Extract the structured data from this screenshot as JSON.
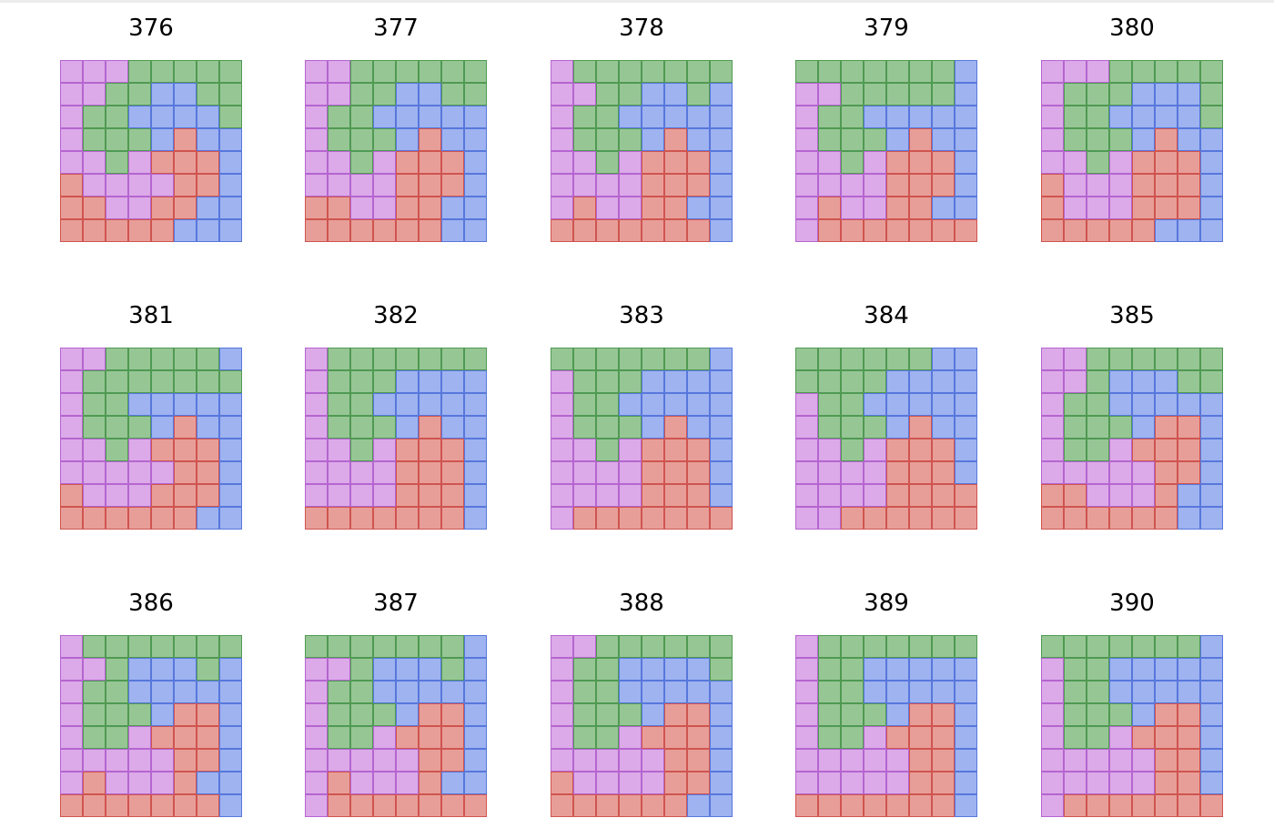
{
  "colors": {
    "P": {
      "fill": "#dcaae8",
      "stroke": "#b565d0"
    },
    "G": {
      "fill": "#97c695",
      "stroke": "#4f9a52"
    },
    "B": {
      "fill": "#9eb3f0",
      "stroke": "#5877dc"
    },
    "R": {
      "fill": "#e89e98",
      "stroke": "#cf5450"
    }
  },
  "panels": [
    {
      "title": "376",
      "grid": [
        "PPPGGGGG",
        "PPGGBBGG",
        "PGGBBBBG",
        "PGGGBRBB",
        "PPGPRRRB",
        "RPPPPRRB",
        "RRPPRRBB",
        "RRRRRBBB"
      ]
    },
    {
      "title": "377",
      "grid": [
        "PPGGGGGG",
        "PPGGBBGG",
        "PGGBBBBB",
        "PGGGBRBB",
        "PPGPRRRB",
        "PPPPRRRB",
        "RRPPRRBB",
        "RRRRRRBB"
      ]
    },
    {
      "title": "378",
      "grid": [
        "PGGGGGGG",
        "PPGGBBGB",
        "PGGBBBBB",
        "PGGGBRBB",
        "PPGPRRRB",
        "PPPPRRRB",
        "PRPPRRBB",
        "RRRRRRRB"
      ]
    },
    {
      "title": "379",
      "grid": [
        "GGGGGGGB",
        "PPGGGGGB",
        "PGGBBBBB",
        "PGGGBRBB",
        "PPGPRRRB",
        "PPPPRRRB",
        "PRPPRRBB",
        "PRRRRRRR"
      ]
    },
    {
      "title": "380",
      "grid": [
        "PPPGGGGG",
        "PGGGBBBG",
        "PGGBBBBG",
        "PGGGBRBB",
        "PPGPRRRB",
        "RPPPRRRB",
        "RPPPRRRB",
        "RRRRRBBB"
      ]
    },
    {
      "title": "381",
      "grid": [
        "PPGGGGGB",
        "PGGGGGGG",
        "PGGBBBBB",
        "PGGGBRBB",
        "PPGPRRRB",
        "PPPPPRRB",
        "RPPPRRRB",
        "RRRRRRBB"
      ]
    },
    {
      "title": "382",
      "grid": [
        "PGGGGGGG",
        "PGGGBBBB",
        "PGGBBBBB",
        "PGGGBRBB",
        "PPGPRRRB",
        "PPPPRRRB",
        "PPPPRRRB",
        "RRRRRRRB"
      ]
    },
    {
      "title": "383",
      "grid": [
        "GGGGGGGB",
        "PGGGBBBB",
        "PGGBBBBB",
        "PGGGBRBB",
        "PPGPRRRB",
        "PPPPRRRB",
        "PPPPRRRB",
        "PRRRRRRR"
      ]
    },
    {
      "title": "384",
      "grid": [
        "GGGGGGBB",
        "GGGGBBBB",
        "PGGBBBBB",
        "PGGGBRBB",
        "PPGPRRRB",
        "PPPPRRRB",
        "PPPPRRRR",
        "PPRRRRRR"
      ]
    },
    {
      "title": "385",
      "grid": [
        "PPGGGGGG",
        "PPGBBBGG",
        "PGGBBBBB",
        "PGGGBRRB",
        "PGGPRRRB",
        "PPPPPRRB",
        "RRPPPRBB",
        "RRRRRRBB"
      ]
    },
    {
      "title": "386",
      "grid": [
        "PGGGGGGG",
        "PPGBBBGB",
        "PGGBBBBB",
        "PGGGBRRB",
        "PGGPRRRB",
        "PPPPPRRB",
        "PRPPPRBB",
        "RRRRRRRB"
      ]
    },
    {
      "title": "387",
      "grid": [
        "GGGGGGGB",
        "PPGBBBGB",
        "PGGBBBBB",
        "PGGGBRRB",
        "PGGPRRRB",
        "PPPPPRRB",
        "PRPPPRBB",
        "PRRRRRRR"
      ]
    },
    {
      "title": "388",
      "grid": [
        "PPGGGGGG",
        "PGGBBBBG",
        "PGGBBBBB",
        "PGGGBRRB",
        "PGGPRRRB",
        "PPPPPRRB",
        "RPPPPRRB",
        "RRRRRRBB"
      ]
    },
    {
      "title": "389",
      "grid": [
        "PGGGGGGG",
        "PGGBBBBB",
        "PGGBBBBB",
        "PGGGBRRB",
        "PGGPRRRB",
        "PPPPPRRB",
        "PPPPPRRB",
        "RRRRRRRB"
      ]
    },
    {
      "title": "390",
      "grid": [
        "GGGGGGGB",
        "PGGBBBBB",
        "PGGBBBBB",
        "PGGGBRRB",
        "PGGPRRRB",
        "PPPPPRRB",
        "PPPPPRRB",
        "PRRRRRRR"
      ]
    }
  ]
}
